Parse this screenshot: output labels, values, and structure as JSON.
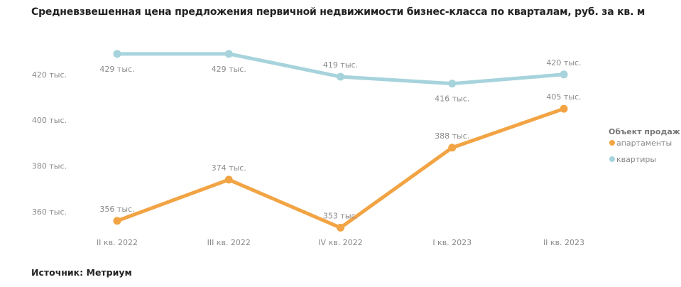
{
  "title": "Средневзвешенная цена предложения первичной недвижимости бизнес-класса по кварталам, руб. за кв. м",
  "source": "Источник: Метриум",
  "chart_data": {
    "type": "line",
    "title": "Средневзвешенная цена предложения первичной недвижимости бизнес-класса по кварталам, руб. за кв. м",
    "categories": [
      "II кв. 2022",
      "III кв. 2022",
      "IV кв. 2022",
      "I кв. 2023",
      "II кв. 2023"
    ],
    "yticks": [
      {
        "value": 360,
        "label": "360 тыс."
      },
      {
        "value": 380,
        "label": "380 тыс."
      },
      {
        "value": 400,
        "label": "400 тыс."
      },
      {
        "value": 420,
        "label": "420 тыс."
      }
    ],
    "ylim": [
      350,
      432
    ],
    "grid": false,
    "legend": {
      "title": "Объект продаж",
      "placement": "right"
    },
    "series": [
      {
        "name": "апартаменты",
        "color": "#f2a444",
        "values": [
          356,
          374,
          353,
          388,
          405
        ],
        "labels": [
          "356 тыс.",
          "374 тыс.",
          "353 тыс.",
          "388 тыс.",
          "405 тыс."
        ]
      },
      {
        "name": "квартиры",
        "color": "#a6d3dc",
        "values": [
          429,
          429,
          419,
          416,
          420
        ],
        "labels": [
          "429 тыс.",
          "429 тыс.",
          "419 тыс.",
          "416 тыс.",
          "420 тыс."
        ]
      }
    ]
  }
}
